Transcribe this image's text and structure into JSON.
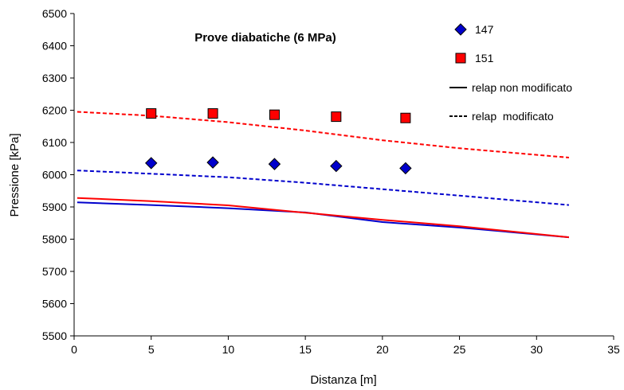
{
  "chart_data": {
    "type": "scatter",
    "title": "Prove diabatiche (6 MPa)",
    "xlabel": "Distanza [m]",
    "ylabel": "Pressione [kPa]",
    "xlim": [
      0,
      35
    ],
    "ylim": [
      5500,
      6500
    ],
    "xticks": [
      0,
      5,
      10,
      15,
      20,
      25,
      30,
      35
    ],
    "yticks": [
      5500,
      5600,
      5700,
      5800,
      5900,
      6000,
      6100,
      6200,
      6300,
      6400,
      6500
    ],
    "grid": false,
    "legend_position": "top-right",
    "legend": [
      {
        "label": "147",
        "marker": "diamond",
        "color": "#0000cc"
      },
      {
        "label": "151",
        "marker": "square",
        "color": "#ff0000"
      },
      {
        "label": "relap non modificato",
        "line": "solid",
        "color": "#000000"
      },
      {
        "label": "relap  modificato",
        "line": "dashed",
        "color": "#000000"
      }
    ],
    "series": [
      {
        "name": "147",
        "kind": "markers",
        "marker": "diamond",
        "color": "#0000cc",
        "x": [
          5,
          9,
          13,
          17,
          21.5
        ],
        "y": [
          6036,
          6038,
          6033,
          6027,
          6020
        ]
      },
      {
        "name": "151",
        "kind": "markers",
        "marker": "square",
        "color": "#ff0000",
        "x": [
          5,
          9,
          13,
          17,
          21.5
        ],
        "y": [
          6190,
          6190,
          6186,
          6180,
          6176
        ]
      },
      {
        "kind": "line",
        "dash": "solid",
        "color": "#0000cc",
        "x": [
          0.2,
          5,
          10,
          15,
          20,
          25,
          32.1
        ],
        "y": [
          5914,
          5906,
          5896,
          5883,
          5853,
          5836,
          5806
        ]
      },
      {
        "kind": "line",
        "dash": "solid",
        "color": "#ff0000",
        "x": [
          0.2,
          5,
          10,
          15,
          20,
          25,
          32.1
        ],
        "y": [
          5928,
          5918,
          5905,
          5882,
          5860,
          5840,
          5806
        ]
      },
      {
        "kind": "line",
        "dash": "dashed",
        "color": "#0000cc",
        "x": [
          0.2,
          5,
          10,
          15,
          20,
          25,
          32.1
        ],
        "y": [
          6013,
          6003,
          5992,
          5975,
          5955,
          5935,
          5906
        ]
      },
      {
        "kind": "line",
        "dash": "dashed",
        "color": "#ff0000",
        "x": [
          0.2,
          5,
          10,
          15,
          20,
          25,
          32.1
        ],
        "y": [
          6195,
          6183,
          6163,
          6137,
          6107,
          6082,
          6053
        ]
      }
    ]
  }
}
